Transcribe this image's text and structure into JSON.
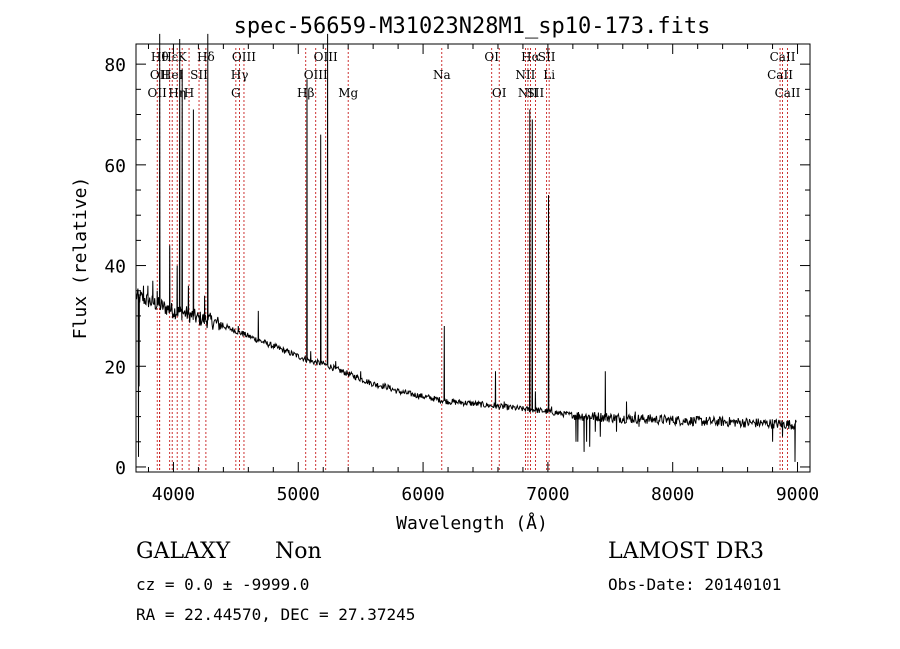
{
  "chart_data": {
    "type": "line",
    "title": "spec-56659-M31023N28M1_sp10-173.fits",
    "xlabel": "Wavelength (Å)",
    "ylabel": "Flux (relative)",
    "xlim": [
      3700,
      9100
    ],
    "ylim": [
      -1,
      84
    ],
    "x_ticks": [
      4000,
      5000,
      6000,
      7000,
      8000,
      9000
    ],
    "x_tick_labels": [
      "4000",
      "5000",
      "6000",
      "7000",
      "8000",
      "9000"
    ],
    "y_ticks": [
      0,
      20,
      40,
      60,
      80
    ],
    "y_tick_labels": [
      "0",
      "20",
      "40",
      "60",
      "80"
    ],
    "grid": false,
    "line_color": "#000000",
    "marker_color": "#c00000",
    "continuum": [
      [
        3700,
        34
      ],
      [
        3800,
        33
      ],
      [
        3900,
        32
      ],
      [
        4000,
        31
      ],
      [
        4100,
        30.5
      ],
      [
        4200,
        29.5
      ],
      [
        4300,
        29
      ],
      [
        4400,
        28
      ],
      [
        4500,
        27
      ],
      [
        4600,
        26
      ],
      [
        4700,
        25
      ],
      [
        4800,
        24
      ],
      [
        4900,
        23
      ],
      [
        5000,
        22
      ],
      [
        5100,
        21
      ],
      [
        5200,
        20.5
      ],
      [
        5300,
        19.5
      ],
      [
        5400,
        18.5
      ],
      [
        5500,
        17.5
      ],
      [
        5600,
        16.5
      ],
      [
        5700,
        16
      ],
      [
        5800,
        15
      ],
      [
        5900,
        14.5
      ],
      [
        6000,
        14
      ],
      [
        6100,
        13.5
      ],
      [
        6200,
        13
      ],
      [
        6300,
        12.8
      ],
      [
        6400,
        12.6
      ],
      [
        6500,
        12.3
      ],
      [
        6600,
        12
      ],
      [
        6700,
        11.8
      ],
      [
        6800,
        11.5
      ],
      [
        6900,
        11.3
      ],
      [
        7000,
        11
      ],
      [
        7100,
        10.6
      ],
      [
        7200,
        10.3
      ],
      [
        7300,
        10.1
      ],
      [
        7400,
        10
      ],
      [
        7500,
        9.8
      ],
      [
        7600,
        9.7
      ],
      [
        7700,
        9.6
      ],
      [
        7800,
        9.5
      ],
      [
        7900,
        9.4
      ],
      [
        8000,
        9.3
      ],
      [
        8100,
        9.2
      ],
      [
        8200,
        9.1
      ],
      [
        8300,
        9
      ],
      [
        8400,
        9
      ],
      [
        8500,
        8.9
      ],
      [
        8600,
        8.8
      ],
      [
        8700,
        8.7
      ],
      [
        8800,
        8.6
      ],
      [
        8900,
        8.5
      ],
      [
        9000,
        8.4
      ]
    ],
    "peaks": [
      {
        "x": 3727,
        "y": 16
      },
      {
        "x": 3760,
        "y": 36
      },
      {
        "x": 3795,
        "y": 36
      },
      {
        "x": 3835,
        "y": 37
      },
      {
        "x": 3870,
        "y": 35
      },
      {
        "x": 3889,
        "y": 86
      },
      {
        "x": 3970,
        "y": 44
      },
      {
        "x": 4030,
        "y": 40
      },
      {
        "x": 4050,
        "y": 85
      },
      {
        "x": 4070,
        "y": 79
      },
      {
        "x": 4120,
        "y": 36
      },
      {
        "x": 4160,
        "y": 71
      },
      {
        "x": 4250,
        "y": 34
      },
      {
        "x": 4275,
        "y": 86
      },
      {
        "x": 4520,
        "y": 28
      },
      {
        "x": 4560,
        "y": 27
      },
      {
        "x": 4680,
        "y": 31
      },
      {
        "x": 5070,
        "y": 77
      },
      {
        "x": 5100,
        "y": 23
      },
      {
        "x": 5180,
        "y": 66
      },
      {
        "x": 5235,
        "y": 86
      },
      {
        "x": 5300,
        "y": 21
      },
      {
        "x": 5500,
        "y": 19
      },
      {
        "x": 6170,
        "y": 28
      },
      {
        "x": 6300,
        "y": 13
      },
      {
        "x": 6580,
        "y": 19
      },
      {
        "x": 6650,
        "y": 13
      },
      {
        "x": 6855,
        "y": 71
      },
      {
        "x": 6875,
        "y": 69
      },
      {
        "x": 6900,
        "y": 15
      },
      {
        "x": 7005,
        "y": 54
      },
      {
        "x": 7030,
        "y": 12
      },
      {
        "x": 7420,
        "y": 16
      },
      {
        "x": 7460,
        "y": 19
      },
      {
        "x": 7630,
        "y": 13
      },
      {
        "x": 7700,
        "y": 11
      }
    ],
    "dips": [
      {
        "x": 3720,
        "y": 2
      },
      {
        "x": 7225,
        "y": 5
      },
      {
        "x": 7240,
        "y": 5
      },
      {
        "x": 7290,
        "y": 3
      },
      {
        "x": 7310,
        "y": 5
      },
      {
        "x": 7335,
        "y": 4
      },
      {
        "x": 7380,
        "y": 7
      },
      {
        "x": 7420,
        "y": 6
      },
      {
        "x": 7550,
        "y": 7
      },
      {
        "x": 7730,
        "y": 8
      },
      {
        "x": 8800,
        "y": 5
      },
      {
        "x": 8880,
        "y": 6
      },
      {
        "x": 8980,
        "y": 1
      }
    ],
    "line_markers": [
      {
        "x": 3870,
        "label": "OII",
        "row": 2,
        "align": "middle"
      },
      {
        "x": 3889,
        "label": "OII",
        "row": 1,
        "align": "middle"
      },
      {
        "x": 3890,
        "label": "Hθ",
        "row": 0,
        "align": "middle"
      },
      {
        "x": 3970,
        "label": "Hε",
        "row": 0,
        "align": "middle"
      },
      {
        "x": 3990,
        "label": "HeI",
        "row": 1,
        "align": "middle"
      },
      {
        "x": 4030,
        "label": "Hη",
        "row": 2,
        "align": "middle"
      },
      {
        "x": 4070,
        "label": "K",
        "row": 0,
        "align": "middle"
      },
      {
        "x": 4125,
        "label": "H",
        "row": 2,
        "align": "middle"
      },
      {
        "x": 4205,
        "label": "SII",
        "row": 1,
        "align": "middle"
      },
      {
        "x": 4260,
        "label": "Hδ",
        "row": 0,
        "align": "middle"
      },
      {
        "x": 4500,
        "label": "G",
        "row": 2,
        "align": "middle"
      },
      {
        "x": 4530,
        "label": "Hγ",
        "row": 1,
        "align": "middle"
      },
      {
        "x": 4565,
        "label": "OIII",
        "row": 0,
        "align": "middle"
      },
      {
        "x": 5060,
        "label": "Hβ",
        "row": 2,
        "align": "middle"
      },
      {
        "x": 5140,
        "label": "OIII",
        "row": 1,
        "align": "middle"
      },
      {
        "x": 5220,
        "label": "OIII",
        "row": 0,
        "align": "middle"
      },
      {
        "x": 5400,
        "label": "Mg",
        "row": 2,
        "align": "middle"
      },
      {
        "x": 6150,
        "label": "Na",
        "row": 1,
        "align": "middle"
      },
      {
        "x": 6550,
        "label": "OI",
        "row": 0,
        "align": "middle"
      },
      {
        "x": 6610,
        "label": "OI",
        "row": 2,
        "align": "middle"
      },
      {
        "x": 6820,
        "label": "NII",
        "row": 1,
        "align": "middle"
      },
      {
        "x": 6840,
        "label": "NII",
        "row": 2,
        "align": "middle"
      },
      {
        "x": 6860,
        "label": "Hα",
        "row": 0,
        "align": "middle"
      },
      {
        "x": 6900,
        "label": "SII",
        "row": 2,
        "align": "middle"
      },
      {
        "x": 6990,
        "label": "SII",
        "row": 0,
        "align": "middle"
      },
      {
        "x": 7010,
        "label": "Li",
        "row": 1,
        "align": "middle"
      },
      {
        "x": 8860,
        "label": "CaII",
        "row": 1,
        "align": "middle"
      },
      {
        "x": 8880,
        "label": "CaII",
        "row": 0,
        "align": "middle"
      },
      {
        "x": 8920,
        "label": "CaII",
        "row": 2,
        "align": "middle"
      }
    ]
  },
  "info": {
    "object_class": "GALAXY",
    "subclass": "Non",
    "survey": "LAMOST DR3",
    "cz": "cz = 0.0 ± -9999.0",
    "obs_date": "Obs-Date: 20140101",
    "coords": "RA =  22.44570, DEC =  27.37245"
  }
}
